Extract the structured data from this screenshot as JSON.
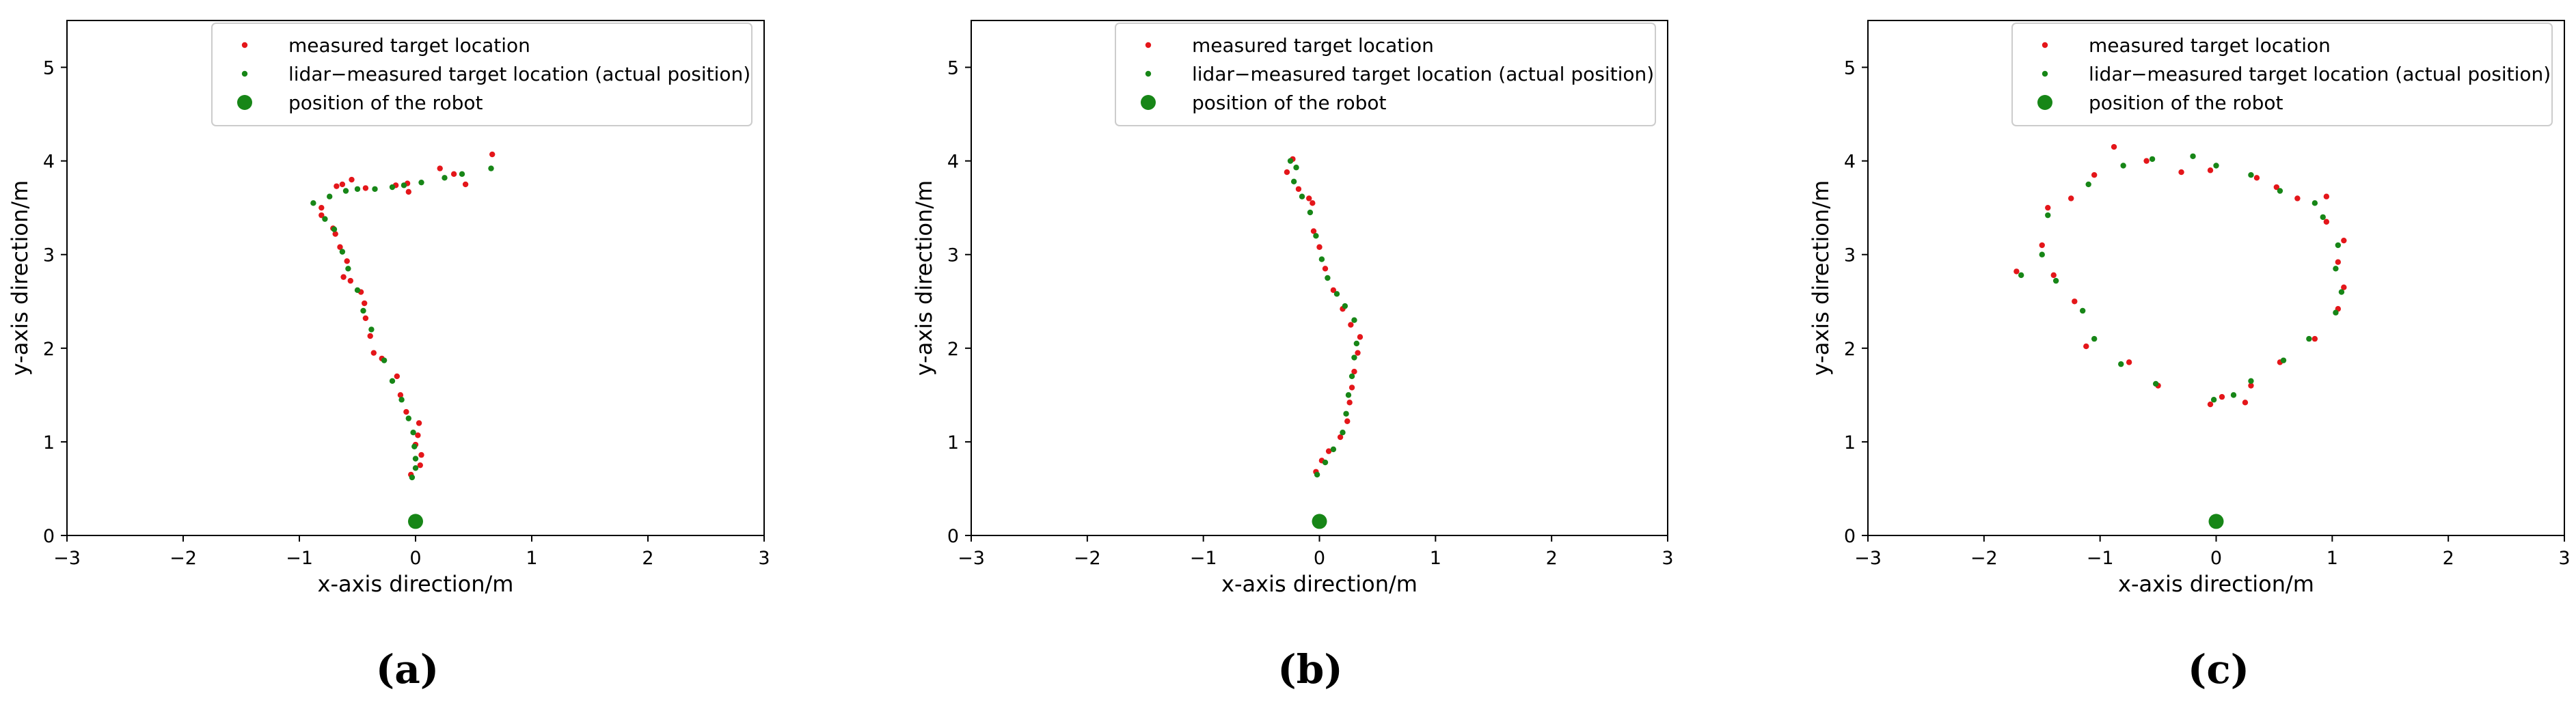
{
  "figure": {
    "colors": {
      "measured": "#e4161a",
      "lidar": "#178617",
      "robot": "#178617",
      "axis": "#000000"
    },
    "legend_labels": {
      "measured": "measured target location",
      "lidar": "lidar−measured target location (actual position)",
      "robot": "position of the robot"
    }
  },
  "chart_data": [
    {
      "type": "scatter",
      "caption": "(a)",
      "xlabel": "x-axis direction/m",
      "ylabel": "y-axis direction/m",
      "xlim": [
        -3,
        3
      ],
      "ylim": [
        0,
        5.5
      ],
      "xticks": [
        "−3",
        "−2",
        "−1",
        "0",
        "1",
        "2",
        "3"
      ],
      "yticks": [
        "0",
        "1",
        "2",
        "3",
        "4",
        "5"
      ],
      "grid": false,
      "legend": "top-right",
      "series": [
        {
          "name": "measured target location",
          "points": [
            [
              -0.04,
              0.65
            ],
            [
              0.04,
              0.75
            ],
            [
              0.05,
              0.86
            ],
            [
              0.0,
              0.97
            ],
            [
              0.02,
              1.07
            ],
            [
              0.03,
              1.2
            ],
            [
              -0.08,
              1.32
            ],
            [
              -0.13,
              1.5
            ],
            [
              -0.16,
              1.7
            ],
            [
              -0.29,
              1.89
            ],
            [
              -0.36,
              1.95
            ],
            [
              -0.39,
              2.13
            ],
            [
              -0.43,
              2.32
            ],
            [
              -0.44,
              2.48
            ],
            [
              -0.47,
              2.6
            ],
            [
              -0.56,
              2.72
            ],
            [
              -0.62,
              2.76
            ],
            [
              -0.59,
              2.93
            ],
            [
              -0.65,
              3.08
            ],
            [
              -0.69,
              3.22
            ],
            [
              -0.71,
              3.28
            ],
            [
              -0.81,
              3.42
            ],
            [
              -0.81,
              3.5
            ],
            [
              -0.63,
              3.75
            ],
            [
              -0.68,
              3.73
            ],
            [
              -0.55,
              3.8
            ],
            [
              -0.43,
              3.71
            ],
            [
              -0.17,
              3.74
            ],
            [
              -0.07,
              3.76
            ],
            [
              -0.06,
              3.67
            ],
            [
              0.21,
              3.92
            ],
            [
              0.33,
              3.86
            ],
            [
              0.43,
              3.75
            ],
            [
              0.66,
              4.07
            ]
          ]
        },
        {
          "name": "lidar−measured target location (actual position)",
          "points": [
            [
              -0.03,
              0.62
            ],
            [
              0.0,
              0.72
            ],
            [
              0.0,
              0.82
            ],
            [
              -0.01,
              0.95
            ],
            [
              -0.02,
              1.1
            ],
            [
              -0.06,
              1.25
            ],
            [
              -0.12,
              1.45
            ],
            [
              -0.2,
              1.65
            ],
            [
              -0.27,
              1.87
            ],
            [
              -0.38,
              2.2
            ],
            [
              -0.45,
              2.4
            ],
            [
              -0.5,
              2.62
            ],
            [
              -0.58,
              2.85
            ],
            [
              -0.63,
              3.03
            ],
            [
              -0.7,
              3.27
            ],
            [
              -0.78,
              3.38
            ],
            [
              -0.88,
              3.55
            ],
            [
              -0.74,
              3.62
            ],
            [
              -0.6,
              3.68
            ],
            [
              -0.5,
              3.7
            ],
            [
              -0.35,
              3.7
            ],
            [
              -0.2,
              3.72
            ],
            [
              -0.1,
              3.74
            ],
            [
              0.05,
              3.77
            ],
            [
              0.25,
              3.82
            ],
            [
              0.4,
              3.86
            ],
            [
              0.65,
              3.92
            ]
          ]
        },
        {
          "name": "position of the robot",
          "points": [
            [
              0,
              0.15
            ]
          ]
        }
      ]
    },
    {
      "type": "scatter",
      "caption": "(b)",
      "xlabel": "x-axis direction/m",
      "ylabel": "y-axis direction/m",
      "xlim": [
        -3,
        3
      ],
      "ylim": [
        0,
        5.5
      ],
      "xticks": [
        "−3",
        "−2",
        "−1",
        "0",
        "1",
        "2",
        "3"
      ],
      "yticks": [
        "0",
        "1",
        "2",
        "3",
        "4",
        "5"
      ],
      "grid": false,
      "legend": "top-right",
      "series": [
        {
          "name": "measured target location",
          "points": [
            [
              -0.03,
              0.68
            ],
            [
              0.02,
              0.8
            ],
            [
              0.08,
              0.9
            ],
            [
              0.18,
              1.05
            ],
            [
              0.24,
              1.22
            ],
            [
              0.26,
              1.42
            ],
            [
              0.28,
              1.58
            ],
            [
              0.3,
              1.75
            ],
            [
              0.33,
              1.95
            ],
            [
              0.35,
              2.12
            ],
            [
              0.27,
              2.25
            ],
            [
              0.2,
              2.42
            ],
            [
              0.12,
              2.62
            ],
            [
              0.05,
              2.85
            ],
            [
              0.0,
              3.08
            ],
            [
              -0.05,
              3.25
            ],
            [
              -0.06,
              3.55
            ],
            [
              -0.09,
              3.6
            ],
            [
              -0.18,
              3.7
            ],
            [
              -0.28,
              3.88
            ],
            [
              -0.23,
              4.02
            ]
          ]
        },
        {
          "name": "lidar−measured target location (actual position)",
          "points": [
            [
              -0.02,
              0.65
            ],
            [
              0.05,
              0.78
            ],
            [
              0.12,
              0.92
            ],
            [
              0.2,
              1.1
            ],
            [
              0.23,
              1.3
            ],
            [
              0.25,
              1.5
            ],
            [
              0.28,
              1.7
            ],
            [
              0.3,
              1.9
            ],
            [
              0.32,
              2.05
            ],
            [
              0.3,
              2.3
            ],
            [
              0.22,
              2.45
            ],
            [
              0.15,
              2.58
            ],
            [
              0.07,
              2.75
            ],
            [
              0.02,
              2.95
            ],
            [
              -0.03,
              3.2
            ],
            [
              -0.08,
              3.45
            ],
            [
              -0.15,
              3.62
            ],
            [
              -0.22,
              3.78
            ],
            [
              -0.2,
              3.93
            ],
            [
              -0.25,
              4.0
            ]
          ]
        },
        {
          "name": "position of the robot",
          "points": [
            [
              0,
              0.15
            ]
          ]
        }
      ]
    },
    {
      "type": "scatter",
      "caption": "(c)",
      "xlabel": "x-axis direction/m",
      "ylabel": "y-axis direction/m",
      "xlim": [
        -3,
        3
      ],
      "ylim": [
        0,
        5.5
      ],
      "xticks": [
        "−3",
        "−2",
        "−1",
        "0",
        "1",
        "2",
        "3"
      ],
      "yticks": [
        "0",
        "1",
        "2",
        "3",
        "4",
        "5"
      ],
      "grid": false,
      "legend": "top-right",
      "series": [
        {
          "name": "measured target location",
          "points": [
            [
              -0.05,
              1.4
            ],
            [
              0.05,
              1.48
            ],
            [
              0.25,
              1.42
            ],
            [
              0.3,
              1.6
            ],
            [
              0.55,
              1.85
            ],
            [
              0.85,
              2.1
            ],
            [
              1.05,
              2.42
            ],
            [
              1.1,
              2.65
            ],
            [
              1.05,
              2.92
            ],
            [
              1.1,
              3.15
            ],
            [
              0.95,
              3.35
            ],
            [
              0.95,
              3.62
            ],
            [
              0.7,
              3.6
            ],
            [
              0.52,
              3.72
            ],
            [
              0.35,
              3.82
            ],
            [
              -0.05,
              3.9
            ],
            [
              -0.3,
              3.88
            ],
            [
              -0.6,
              4.0
            ],
            [
              -0.88,
              4.15
            ],
            [
              -1.05,
              3.85
            ],
            [
              -1.25,
              3.6
            ],
            [
              -1.45,
              3.5
            ],
            [
              -1.5,
              3.1
            ],
            [
              -1.72,
              2.82
            ],
            [
              -1.4,
              2.78
            ],
            [
              -1.22,
              2.5
            ],
            [
              -1.12,
              2.02
            ],
            [
              -0.75,
              1.85
            ],
            [
              -0.5,
              1.6
            ]
          ]
        },
        {
          "name": "lidar−measured target location (actual position)",
          "points": [
            [
              -0.02,
              1.45
            ],
            [
              0.15,
              1.5
            ],
            [
              0.3,
              1.65
            ],
            [
              0.58,
              1.87
            ],
            [
              0.8,
              2.1
            ],
            [
              1.03,
              2.38
            ],
            [
              1.08,
              2.6
            ],
            [
              1.03,
              2.85
            ],
            [
              1.05,
              3.1
            ],
            [
              0.92,
              3.4
            ],
            [
              0.85,
              3.55
            ],
            [
              0.55,
              3.68
            ],
            [
              0.3,
              3.85
            ],
            [
              0.0,
              3.95
            ],
            [
              -0.2,
              4.05
            ],
            [
              -0.55,
              4.02
            ],
            [
              -0.8,
              3.95
            ],
            [
              -1.1,
              3.75
            ],
            [
              -1.45,
              3.42
            ],
            [
              -1.5,
              3.0
            ],
            [
              -1.68,
              2.78
            ],
            [
              -1.38,
              2.72
            ],
            [
              -1.15,
              2.4
            ],
            [
              -1.05,
              2.1
            ],
            [
              -0.82,
              1.83
            ],
            [
              -0.52,
              1.62
            ]
          ]
        },
        {
          "name": "position of the robot",
          "points": [
            [
              0,
              0.15
            ]
          ]
        }
      ]
    }
  ]
}
